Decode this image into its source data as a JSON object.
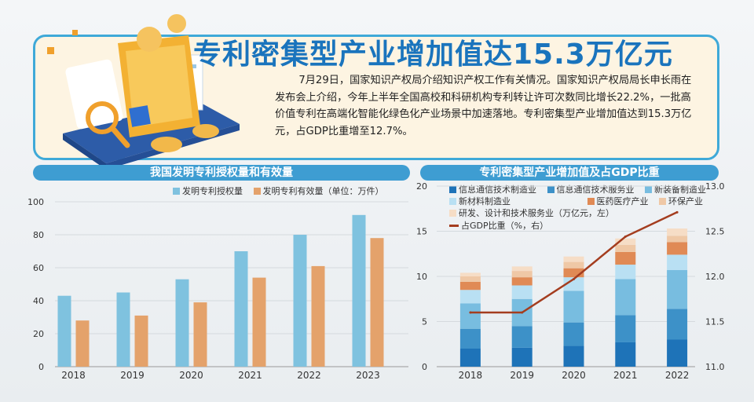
{
  "header": {
    "title": "专利密集型产业增加值达15.3万亿元",
    "body": "7月29日，国家知识产权局介绍知识产权工作有关情况。国家知识产权局局长申长雨在发布会上介绍，今年上半年全国高校和科研机构专利转让许可次数同比增长22.2%，一批高价值专利在高端化智能化绿色化产业场景中加速落地。专利密集型产业增加值达到15.3万亿元，占GDP比重增至12.7%。"
  },
  "colors": {
    "bar_grant": "#7fc2df",
    "bar_valid": "#e4a26b",
    "s1": "#1e73b8",
    "s2": "#3d91c8",
    "s3": "#78bde0",
    "s4": "#b9e0f3",
    "s5": "#e08a55",
    "s6": "#efc8a6",
    "s7": "#f6ddc6",
    "line": "#a43d1f"
  },
  "chart_data": [
    {
      "type": "bar",
      "title": "我国发明专利授权量和有效量",
      "categories": [
        "2018",
        "2019",
        "2020",
        "2021",
        "2022",
        "2023"
      ],
      "series": [
        {
          "name": "发明专利授权量",
          "values": [
            43,
            45,
            53,
            70,
            80,
            92
          ]
        },
        {
          "name": "发明专利有效量（单位：万件）",
          "values": [
            28,
            31,
            39,
            54,
            61,
            78
          ]
        }
      ],
      "yticks": [
        "0",
        "20",
        "40",
        "60",
        "80",
        "100"
      ],
      "ylim": [
        0,
        100
      ],
      "grid": true,
      "legend": "top"
    },
    {
      "type": "bar",
      "title": "专利密集型产业增加值及占GDP比重",
      "categories": [
        "2018",
        "2019",
        "2020",
        "2021",
        "2022"
      ],
      "stacked": true,
      "series": [
        {
          "name": "信息通信技术制造业",
          "values": [
            2.0,
            2.1,
            2.3,
            2.7,
            3.0
          ]
        },
        {
          "name": "信息通信技术服务业",
          "values": [
            2.2,
            2.4,
            2.6,
            3.0,
            3.4
          ]
        },
        {
          "name": "新装备制造业",
          "values": [
            2.8,
            3.0,
            3.5,
            4.0,
            4.3
          ]
        },
        {
          "name": "新材料制造业",
          "values": [
            1.5,
            1.5,
            1.5,
            1.6,
            1.7
          ]
        },
        {
          "name": "医药医疗产业",
          "values": [
            0.9,
            0.9,
            1.0,
            1.4,
            1.4
          ]
        },
        {
          "name": "环保产业",
          "values": [
            0.6,
            0.7,
            0.7,
            0.8,
            0.7
          ]
        },
        {
          "name": "研发、设计和技术服务业（万亿元，左）",
          "values": [
            0.4,
            0.5,
            0.6,
            0.7,
            0.8
          ]
        }
      ],
      "line": {
        "name": "占GDP比重（%，右）",
        "values": [
          11.6,
          11.6,
          11.97,
          12.44,
          12.71
        ]
      },
      "yticks_left": [
        "0",
        "5",
        "10",
        "15",
        "20"
      ],
      "ylim_left": [
        0,
        20
      ],
      "yticks_right": [
        "11.0",
        "11.5",
        "12.0",
        "12.5",
        "13.0"
      ],
      "ylim_right": [
        11.0,
        13.0
      ],
      "grid": true,
      "legend": "top"
    }
  ]
}
